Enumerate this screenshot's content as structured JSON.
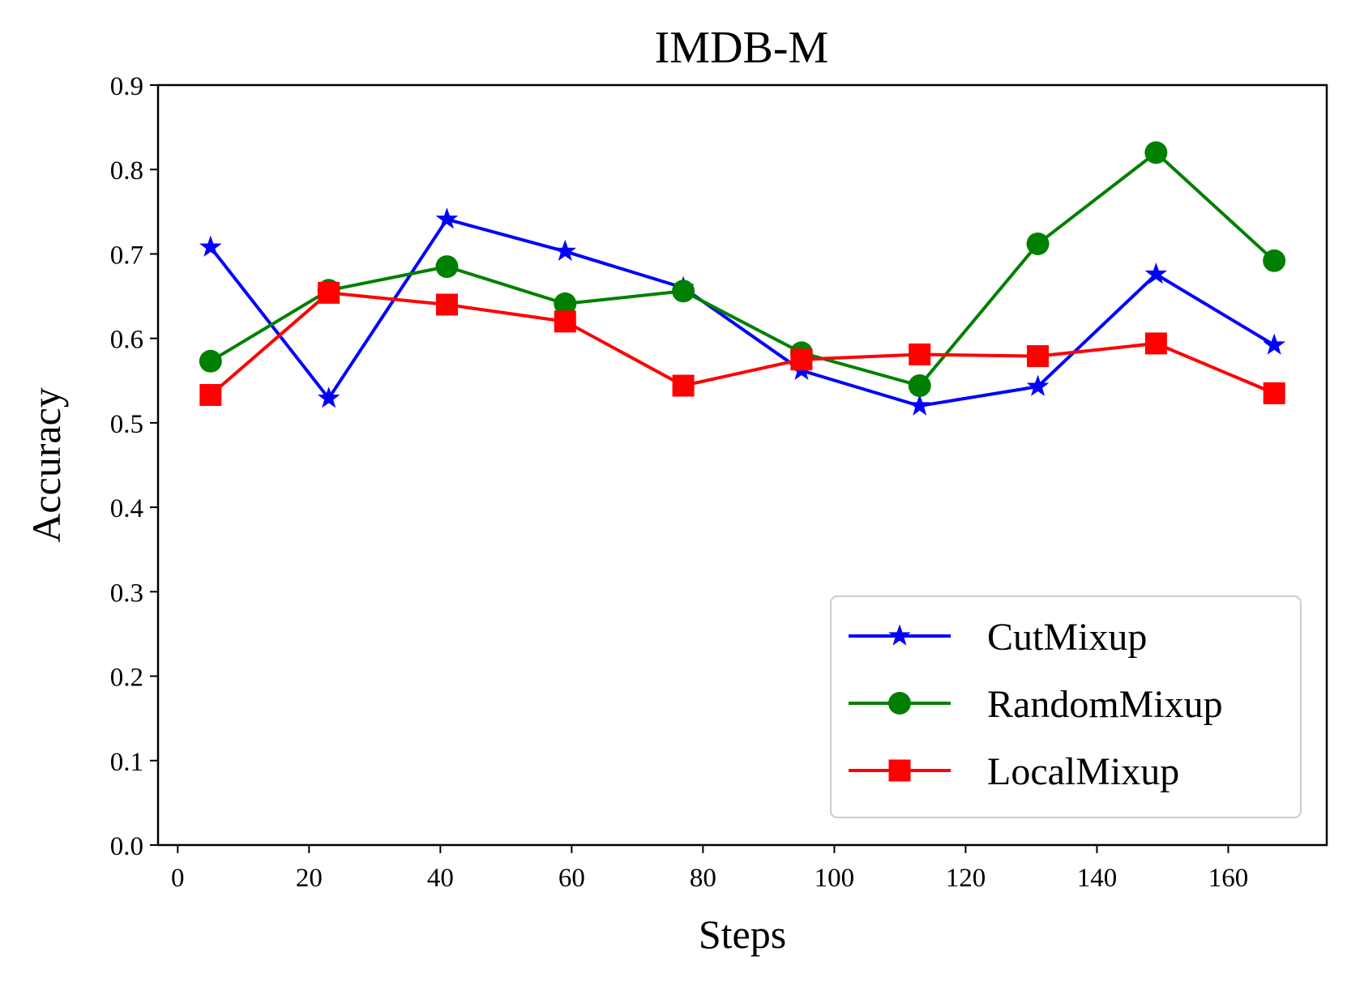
{
  "chart_data": {
    "type": "line",
    "title": "IMDB-M",
    "xlabel": "Steps",
    "ylabel": "Accuracy",
    "xlim": [
      -3,
      175
    ],
    "ylim": [
      0.0,
      0.9
    ],
    "xticks": [
      0,
      20,
      40,
      60,
      80,
      100,
      120,
      140,
      160
    ],
    "yticks": [
      0.0,
      0.1,
      0.2,
      0.3,
      0.4,
      0.5,
      0.6,
      0.7,
      0.8,
      0.9
    ],
    "ytick_labels": [
      "0.0",
      "0.1",
      "0.2",
      "0.3",
      "0.4",
      "0.5",
      "0.6",
      "0.7",
      "0.8",
      "0.9"
    ],
    "grid": false,
    "legend_position": "lower right",
    "x": [
      5,
      23,
      41,
      59,
      77,
      95,
      113,
      131,
      149,
      167
    ],
    "series": [
      {
        "name": "CutMixup",
        "color": "#0000ff",
        "marker": "star",
        "values": [
          0.708,
          0.529,
          0.741,
          0.703,
          0.66,
          0.562,
          0.52,
          0.543,
          0.676,
          0.592
        ]
      },
      {
        "name": "RandomMixup",
        "color": "#008000",
        "marker": "circle",
        "values": [
          0.573,
          0.657,
          0.685,
          0.641,
          0.656,
          0.583,
          0.544,
          0.712,
          0.82,
          0.692
        ]
      },
      {
        "name": "LocalMixup",
        "color": "#ff0000",
        "marker": "square",
        "values": [
          0.533,
          0.654,
          0.64,
          0.62,
          0.544,
          0.575,
          0.581,
          0.579,
          0.594,
          0.535
        ]
      }
    ]
  }
}
